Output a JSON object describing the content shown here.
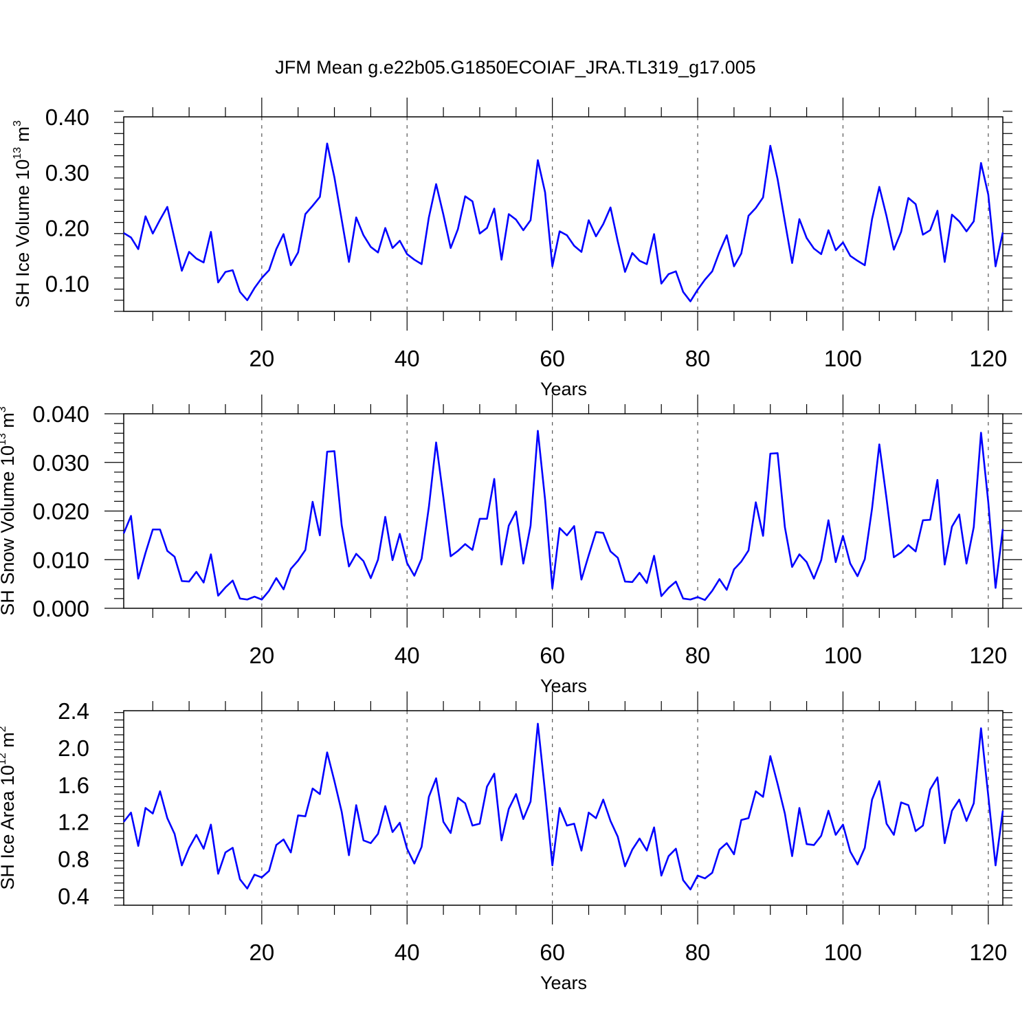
{
  "title": "JFM Mean g.e22b05.G1850ECOIAF_JRA.TL319_g17.005",
  "chart_data": [
    {
      "type": "line",
      "xlabel": "Years",
      "ylabel": {
        "text": "SH Ice Volume 10",
        "exponent": "13",
        "unit": " m",
        "unit_exponent": "3"
      },
      "xlim": [
        1,
        122
      ],
      "ylim": [
        0.05,
        0.4
      ],
      "x_ticks": [
        20,
        40,
        60,
        80,
        100,
        120
      ],
      "y_ticks": [
        0.1,
        0.2,
        0.3,
        0.4
      ],
      "y_tick_labels": [
        "0.10",
        "0.20",
        "0.30",
        "0.40"
      ],
      "y_minor_step": 0.02,
      "vertical_gridlines": [
        20,
        40,
        60,
        80,
        100,
        120
      ],
      "line_color": "#0000ff",
      "x_start": 1,
      "values": [
        0.191,
        0.183,
        0.162,
        0.221,
        0.19,
        0.215,
        0.238,
        0.18,
        0.123,
        0.157,
        0.145,
        0.138,
        0.193,
        0.102,
        0.121,
        0.124,
        0.085,
        0.07,
        0.092,
        0.11,
        0.124,
        0.162,
        0.189,
        0.133,
        0.156,
        0.225,
        0.24,
        0.256,
        0.352,
        0.291,
        0.215,
        0.139,
        0.219,
        0.187,
        0.166,
        0.156,
        0.2,
        0.164,
        0.177,
        0.153,
        0.143,
        0.135,
        0.219,
        0.279,
        0.224,
        0.164,
        0.198,
        0.257,
        0.248,
        0.19,
        0.2,
        0.235,
        0.143,
        0.225,
        0.215,
        0.196,
        0.214,
        0.322,
        0.264,
        0.131,
        0.194,
        0.187,
        0.168,
        0.157,
        0.214,
        0.185,
        0.207,
        0.237,
        0.176,
        0.121,
        0.155,
        0.141,
        0.135,
        0.189,
        0.1,
        0.117,
        0.122,
        0.085,
        0.068,
        0.089,
        0.107,
        0.122,
        0.157,
        0.187,
        0.131,
        0.154,
        0.222,
        0.236,
        0.255,
        0.348,
        0.288,
        0.212,
        0.137,
        0.216,
        0.182,
        0.163,
        0.153,
        0.196,
        0.16,
        0.174,
        0.15,
        0.141,
        0.133,
        0.216,
        0.274,
        0.221,
        0.161,
        0.193,
        0.254,
        0.243,
        0.188,
        0.196,
        0.231,
        0.139,
        0.224,
        0.212,
        0.194,
        0.212,
        0.317,
        0.26,
        0.131,
        0.192
      ]
    },
    {
      "type": "line",
      "xlabel": "Years",
      "ylabel": {
        "text": "SH Snow Volume 10",
        "exponent": "13",
        "unit": " m",
        "unit_exponent": "3"
      },
      "xlim": [
        1,
        122
      ],
      "ylim": [
        0.0,
        0.04
      ],
      "x_ticks": [
        20,
        40,
        60,
        80,
        100,
        120
      ],
      "y_ticks": [
        0.0,
        0.01,
        0.02,
        0.03,
        0.04
      ],
      "y_tick_labels": [
        "0.000",
        "0.010",
        "0.020",
        "0.030",
        "0.040"
      ],
      "y_minor_step": 0.002,
      "vertical_gridlines": [
        20,
        40,
        60,
        80,
        100,
        120
      ],
      "line_color": "#0000ff",
      "x_start": 1,
      "values": [
        0.0154,
        0.019,
        0.0061,
        0.0114,
        0.0162,
        0.0162,
        0.0118,
        0.0106,
        0.0056,
        0.0055,
        0.0075,
        0.0053,
        0.0111,
        0.0026,
        0.0043,
        0.0057,
        0.002,
        0.0018,
        0.0024,
        0.0018,
        0.0036,
        0.0062,
        0.0039,
        0.0081,
        0.0098,
        0.012,
        0.0219,
        0.015,
        0.0322,
        0.0323,
        0.0171,
        0.0086,
        0.0112,
        0.0097,
        0.0062,
        0.01,
        0.0188,
        0.0099,
        0.0153,
        0.0093,
        0.0067,
        0.0102,
        0.0208,
        0.0341,
        0.0228,
        0.0107,
        0.0118,
        0.0132,
        0.012,
        0.0184,
        0.0184,
        0.0266,
        0.009,
        0.017,
        0.0199,
        0.0092,
        0.017,
        0.0365,
        0.0223,
        0.0041,
        0.0165,
        0.015,
        0.0169,
        0.0059,
        0.0109,
        0.0157,
        0.0155,
        0.0117,
        0.0104,
        0.0055,
        0.0054,
        0.0073,
        0.0052,
        0.0108,
        0.0025,
        0.0042,
        0.0055,
        0.002,
        0.0018,
        0.0023,
        0.0017,
        0.0036,
        0.006,
        0.0038,
        0.008,
        0.0096,
        0.0119,
        0.0218,
        0.0149,
        0.0318,
        0.0319,
        0.0167,
        0.0085,
        0.0111,
        0.0095,
        0.0061,
        0.0099,
        0.0181,
        0.0095,
        0.0149,
        0.0092,
        0.0066,
        0.0101,
        0.0205,
        0.0337,
        0.0225,
        0.0105,
        0.0115,
        0.013,
        0.0117,
        0.0181,
        0.0182,
        0.0264,
        0.009,
        0.0168,
        0.0193,
        0.0092,
        0.0167,
        0.0361,
        0.0218,
        0.0042,
        0.0163
      ]
    },
    {
      "type": "line",
      "xlabel": "Years",
      "ylabel": {
        "text": "SH Ice Area 10",
        "exponent": "12",
        "unit": " m",
        "unit_exponent": "2"
      },
      "xlim": [
        1,
        122
      ],
      "ylim": [
        0.3,
        2.4
      ],
      "x_ticks": [
        20,
        40,
        60,
        80,
        100,
        120
      ],
      "y_ticks": [
        0.4,
        0.8,
        1.2,
        1.6,
        2.0,
        2.4
      ],
      "y_tick_labels": [
        "0.4",
        "0.8",
        "1.2",
        "1.6",
        "2.0",
        "2.4"
      ],
      "y_minor_step": 0.08,
      "vertical_gridlines": [
        20,
        40,
        60,
        80,
        100,
        120
      ],
      "line_color": "#0000ff",
      "x_start": 1,
      "values": [
        1.2,
        1.3,
        0.94,
        1.35,
        1.29,
        1.53,
        1.24,
        1.07,
        0.73,
        0.92,
        1.06,
        0.91,
        1.17,
        0.64,
        0.87,
        0.92,
        0.58,
        0.48,
        0.63,
        0.6,
        0.67,
        0.95,
        1.01,
        0.87,
        1.27,
        1.26,
        1.56,
        1.5,
        1.95,
        1.64,
        1.31,
        0.84,
        1.38,
        1.0,
        0.97,
        1.07,
        1.37,
        1.09,
        1.19,
        0.91,
        0.75,
        0.93,
        1.47,
        1.67,
        1.2,
        1.08,
        1.46,
        1.4,
        1.16,
        1.18,
        1.58,
        1.72,
        1.0,
        1.34,
        1.5,
        1.23,
        1.42,
        2.26,
        1.52,
        0.73,
        1.35,
        1.16,
        1.18,
        0.89,
        1.3,
        1.24,
        1.44,
        1.21,
        1.04,
        0.72,
        0.9,
        1.02,
        0.89,
        1.14,
        0.62,
        0.83,
        0.91,
        0.57,
        0.47,
        0.62,
        0.59,
        0.65,
        0.9,
        0.97,
        0.85,
        1.22,
        1.24,
        1.53,
        1.47,
        1.91,
        1.61,
        1.29,
        0.83,
        1.35,
        0.96,
        0.95,
        1.05,
        1.32,
        1.06,
        1.17,
        0.88,
        0.74,
        0.92,
        1.44,
        1.64,
        1.18,
        1.06,
        1.41,
        1.38,
        1.1,
        1.16,
        1.55,
        1.68,
        0.97,
        1.32,
        1.44,
        1.21,
        1.4,
        2.21,
        1.48,
        0.73,
        1.32
      ]
    }
  ]
}
